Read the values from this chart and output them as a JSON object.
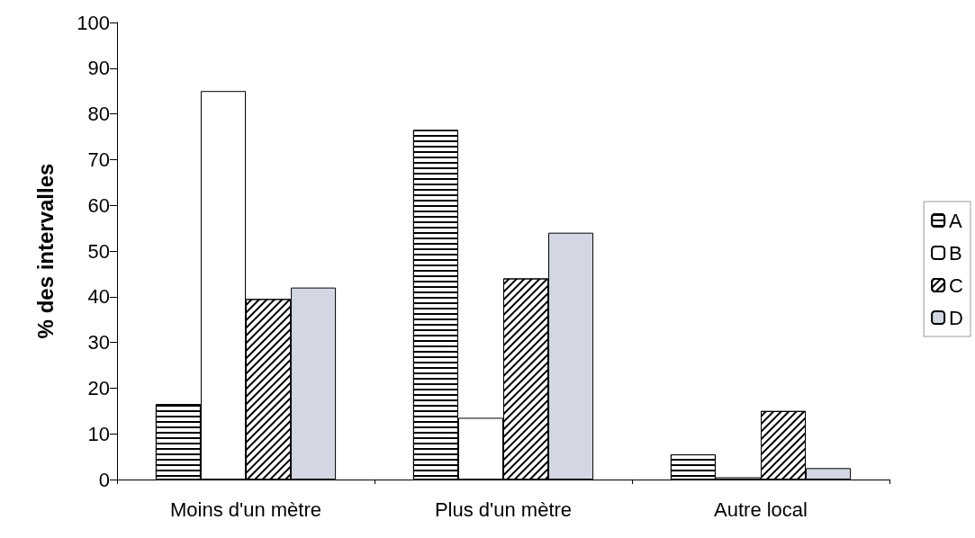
{
  "chart_data": {
    "type": "bar",
    "ylabel": "% des intervalles",
    "categories": [
      "Moins d'un mètre",
      "Plus d'un mètre",
      "Autre local"
    ],
    "series": [
      {
        "name": "A",
        "color": "#ffffff",
        "values": [
          16.5,
          76.5,
          5.5
        ]
      },
      {
        "name": "B",
        "color": "#ffffff",
        "values": [
          85,
          13.5,
          0.5
        ]
      },
      {
        "name": "C",
        "color": "#ffffff",
        "values": [
          39.5,
          44,
          15
        ]
      },
      {
        "name": "D",
        "color": "#d3d7e3",
        "values": [
          42,
          54,
          2.5
        ]
      }
    ],
    "ylim": [
      0,
      100
    ],
    "yticks": [
      0,
      10,
      20,
      30,
      40,
      50,
      60,
      70,
      80,
      90,
      100
    ],
    "grid": false,
    "legend": "right"
  }
}
